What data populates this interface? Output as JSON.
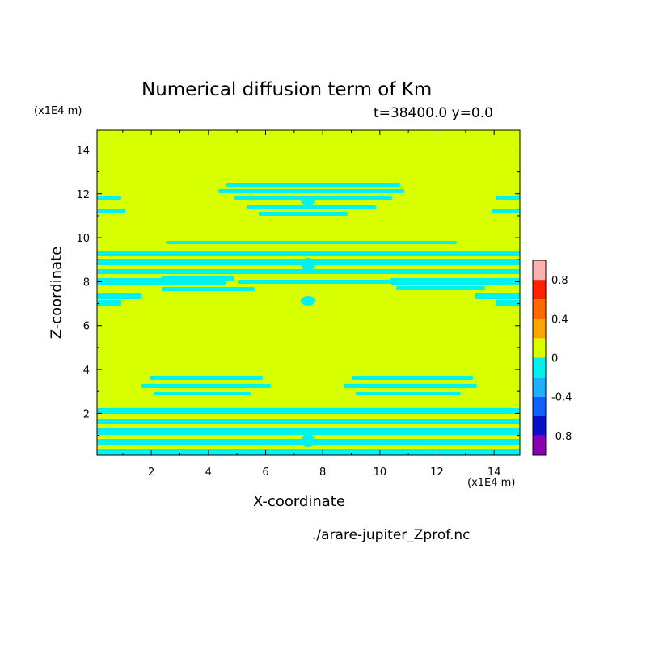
{
  "chart_data": {
    "type": "heatmap",
    "title": "Numerical diffusion term of Km",
    "subtitle": "t=38400.0 y=0.0",
    "xlabel": "X-coordinate",
    "ylabel": "Z-coordinate",
    "x_unit": "(x1E4 m)",
    "y_unit": "(x1E4 m)",
    "xlim": [
      0.1,
      14.9
    ],
    "ylim": [
      0.1,
      14.9
    ],
    "xticks": [
      "2",
      "4",
      "6",
      "8",
      "10",
      "12",
      "14"
    ],
    "yticks": [
      "2",
      "4",
      "6",
      "8",
      "10",
      "12",
      "14"
    ],
    "colorbar": {
      "levels": [
        -1.0,
        -0.8,
        -0.6,
        -0.4,
        -0.2,
        0.0,
        0.2,
        0.4,
        0.6,
        0.8,
        1.0
      ],
      "colors": [
        "#8a00b0",
        "#0a10c8",
        "#1060ff",
        "#1cb0ff",
        "#00f2ee",
        "#d8ff00",
        "#ffa400",
        "#ff6a00",
        "#ff2200",
        "#ffb0b0"
      ],
      "tick_labels": [
        {
          "label": "0.8",
          "value": 0.8
        },
        {
          "label": "0.4",
          "value": 0.4
        },
        {
          "label": "0",
          "value": 0.0
        },
        {
          "label": "-0.4",
          "value": -0.4
        },
        {
          "label": "-0.8",
          "value": -0.8
        }
      ]
    },
    "background_value_range": [
      0.0,
      0.2
    ],
    "background_color": "#d8ff00",
    "negative_region_value_range": [
      -0.2,
      0.0
    ],
    "negative_region_color": "#00f2ee"
  },
  "source_file": "./arare-jupiter_Zprof.nc"
}
